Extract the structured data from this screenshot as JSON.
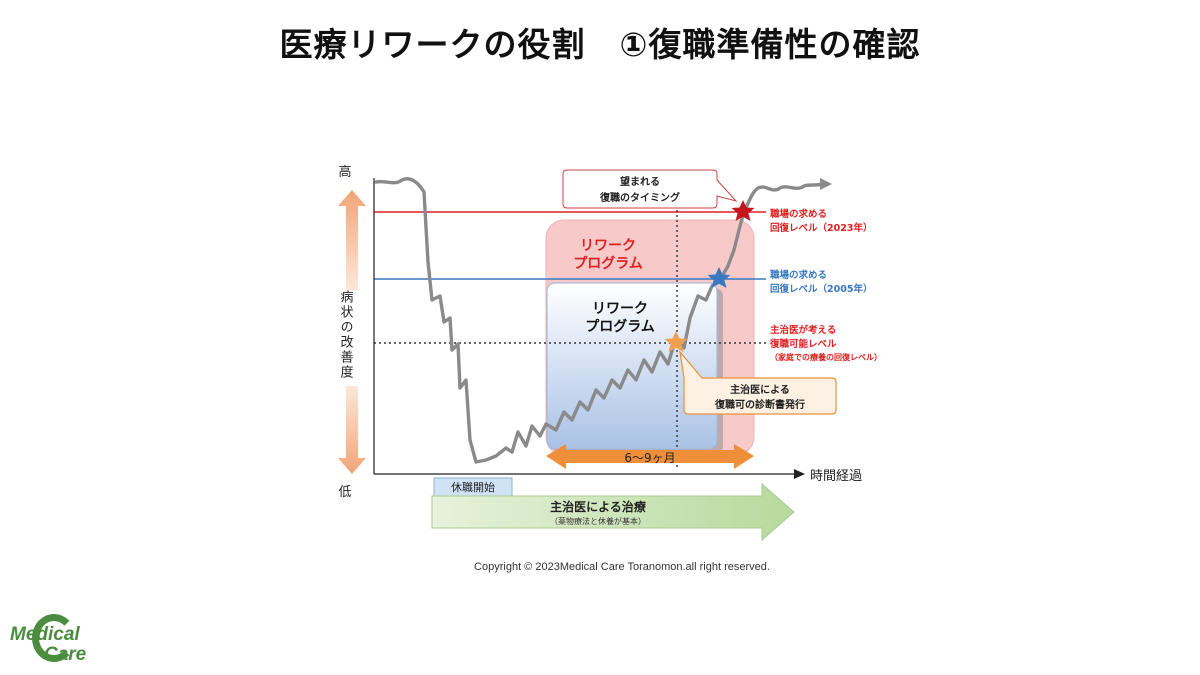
{
  "title": "医療リワークの役割　①復職準備性の確認",
  "y_axis": {
    "high": "高",
    "low": "低",
    "label": "病状の改善度"
  },
  "x_axis": {
    "label": "時間経過"
  },
  "callouts": {
    "timing_line1": "望まれる",
    "timing_line2": "復職のタイミング",
    "doctor_line1": "主治医による",
    "doctor_line2": "復職可の診断書発行"
  },
  "levels": {
    "red_line1": "職場の求める",
    "red_line2": "回復レベル（2023年）",
    "blue_line1": "職場の求める",
    "blue_line2": "回復レベル（2005年）",
    "doctor_line1": "主治医が考える",
    "doctor_line2": "復職可能レベル",
    "doctor_line3": "（家庭での療養の回復レベル）"
  },
  "programs": {
    "outer_line1": "リワーク",
    "outer_line2": "プログラム",
    "inner_line1": "リワーク",
    "inner_line2": "プログラム"
  },
  "duration": "6〜9ヶ月",
  "leave_start": "休職開始",
  "treatment_line1": "主治医による治療",
  "treatment_line2": "（薬物療法と休養が基本）",
  "copyright": "Copyright © 2023Medical Care Toranomon.all right reserved.",
  "logo": {
    "line1": "Medical",
    "line2": "Care"
  },
  "colors": {
    "red": "#e02020",
    "blue": "#3a78c2",
    "orange": "#ef8f3a",
    "green": "#c7e3b3",
    "curve": "#8a8a8a",
    "pink": "#f7c9c9"
  }
}
